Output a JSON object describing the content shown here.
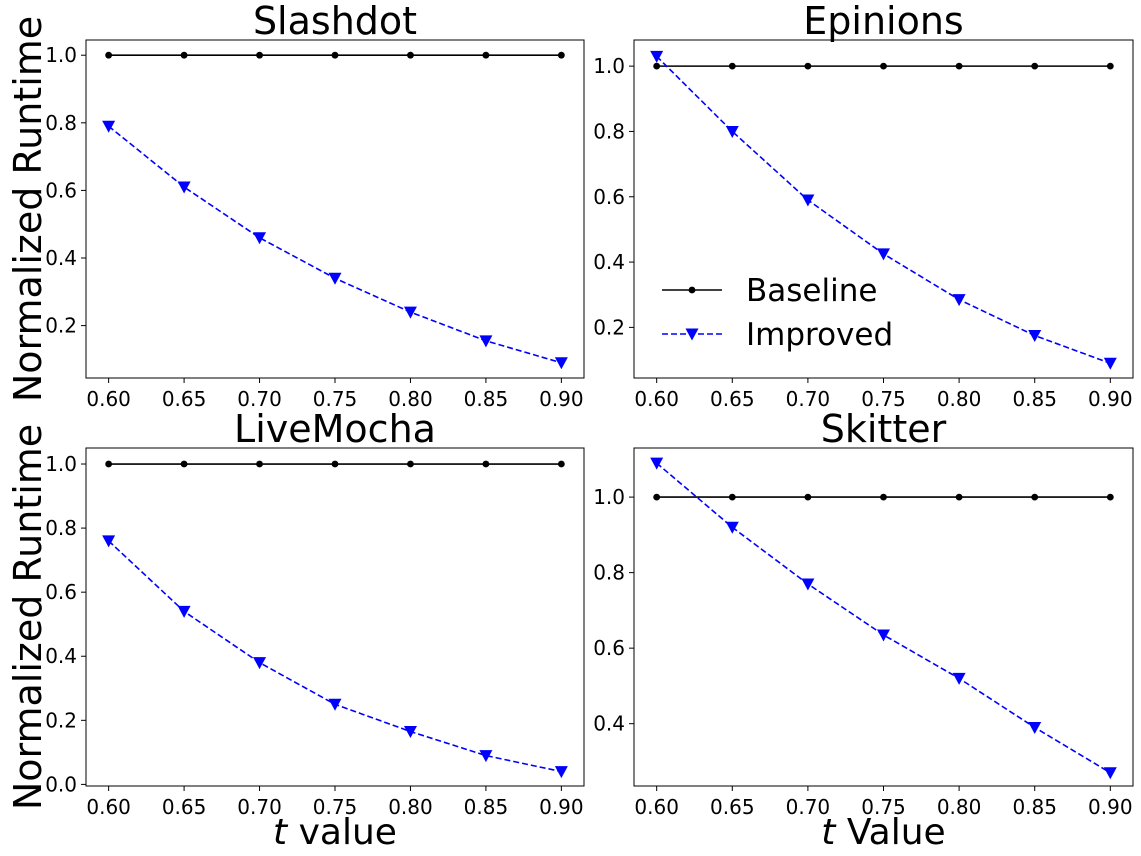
{
  "colors": {
    "baseline": "#000000",
    "improved": "#0000ff",
    "frame": "#000000",
    "background": "#ffffff"
  },
  "legend": {
    "baseline": "Baseline",
    "improved": "Improved",
    "placement": "lower-left (Epinions panel)"
  },
  "chart_data": [
    {
      "type": "line",
      "title": "Slashdot",
      "ylabel": "Normalized Runtime",
      "xlabel": "",
      "x": [
        0.6,
        0.65,
        0.7,
        0.75,
        0.8,
        0.85,
        0.9
      ],
      "xticks": [
        "0.60",
        "0.65",
        "0.70",
        "0.75",
        "0.80",
        "0.85",
        "0.90"
      ],
      "xlim": [
        0.585,
        0.915
      ],
      "ylim": [
        0.045,
        1.045
      ],
      "yticks": [
        "0.2",
        "0.4",
        "0.6",
        "0.8",
        "1.0"
      ],
      "series": [
        {
          "name": "Baseline",
          "values": [
            1.0,
            1.0,
            1.0,
            1.0,
            1.0,
            1.0,
            1.0
          ]
        },
        {
          "name": "Improved",
          "values": [
            0.79,
            0.61,
            0.46,
            0.34,
            0.24,
            0.155,
            0.09
          ]
        }
      ]
    },
    {
      "type": "line",
      "title": "Epinions",
      "ylabel": "",
      "xlabel": "",
      "x": [
        0.6,
        0.65,
        0.7,
        0.75,
        0.8,
        0.85,
        0.9
      ],
      "xticks": [
        "0.60",
        "0.65",
        "0.70",
        "0.75",
        "0.80",
        "0.85",
        "0.90"
      ],
      "xlim": [
        0.585,
        0.915
      ],
      "ylim": [
        0.045,
        1.08
      ],
      "yticks": [
        "0.2",
        "0.4",
        "0.6",
        "0.8",
        "1.0"
      ],
      "series": [
        {
          "name": "Baseline",
          "values": [
            1.0,
            1.0,
            1.0,
            1.0,
            1.0,
            1.0,
            1.0
          ]
        },
        {
          "name": "Improved",
          "values": [
            1.03,
            0.8,
            0.59,
            0.425,
            0.285,
            0.175,
            0.09
          ]
        }
      ]
    },
    {
      "type": "line",
      "title": "LiveMocha",
      "ylabel": "Normalized Runtime",
      "xlabel": "value",
      "xlabel_var": "t",
      "x": [
        0.6,
        0.65,
        0.7,
        0.75,
        0.8,
        0.85,
        0.9
      ],
      "xticks": [
        "0.60",
        "0.65",
        "0.70",
        "0.75",
        "0.80",
        "0.85",
        "0.90"
      ],
      "xlim": [
        0.585,
        0.915
      ],
      "ylim": [
        -0.005,
        1.05
      ],
      "yticks": [
        "0.0",
        "0.2",
        "0.4",
        "0.6",
        "0.8",
        "1.0"
      ],
      "series": [
        {
          "name": "Baseline",
          "values": [
            1.0,
            1.0,
            1.0,
            1.0,
            1.0,
            1.0,
            1.0
          ]
        },
        {
          "name": "Improved",
          "values": [
            0.76,
            0.54,
            0.38,
            0.25,
            0.165,
            0.09,
            0.04
          ]
        }
      ]
    },
    {
      "type": "line",
      "title": "Skitter",
      "ylabel": "",
      "xlabel": "Value",
      "xlabel_var": "t",
      "x": [
        0.6,
        0.65,
        0.7,
        0.75,
        0.8,
        0.85,
        0.9
      ],
      "xticks": [
        "0.60",
        "0.65",
        "0.70",
        "0.75",
        "0.80",
        "0.85",
        "0.90"
      ],
      "xlim": [
        0.585,
        0.915
      ],
      "ylim": [
        0.235,
        1.13
      ],
      "yticks": [
        "0.4",
        "0.6",
        "0.8",
        "1.0"
      ],
      "series": [
        {
          "name": "Baseline",
          "values": [
            1.0,
            1.0,
            1.0,
            1.0,
            1.0,
            1.0,
            1.0
          ]
        },
        {
          "name": "Improved",
          "values": [
            1.09,
            0.92,
            0.77,
            0.635,
            0.52,
            0.39,
            0.27
          ]
        }
      ]
    }
  ]
}
